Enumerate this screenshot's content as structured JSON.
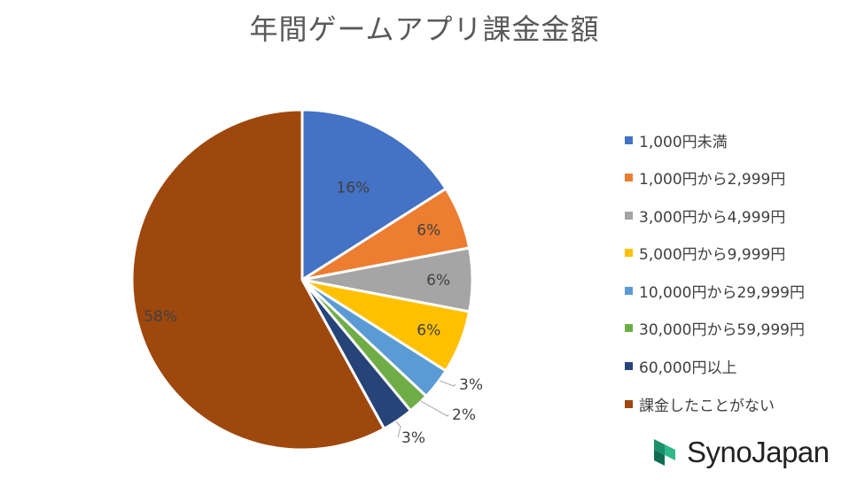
{
  "chart_data": {
    "type": "pie",
    "title": "年間ゲームアプリ課金金額",
    "start_angle_deg": 0,
    "direction": "clockwise",
    "legend_position": "right",
    "slices": [
      {
        "label": "1,000円未満",
        "value": 16,
        "display": "16%",
        "color": "#4472C4"
      },
      {
        "label": "1,000円から2,999円",
        "value": 6,
        "display": "6%",
        "color": "#ED7D31"
      },
      {
        "label": "3,000円から4,999円",
        "value": 6,
        "display": "6%",
        "color": "#A5A5A5"
      },
      {
        "label": "5,000円から9,999円",
        "value": 6,
        "display": "6%",
        "color": "#FFC000"
      },
      {
        "label": "10,000円から29,999円",
        "value": 3,
        "display": "3%",
        "color": "#5B9BD5"
      },
      {
        "label": "30,000円から59,999円",
        "value": 2,
        "display": "2%",
        "color": "#70AD47"
      },
      {
        "label": "60,000円以上",
        "value": 3,
        "display": "3%",
        "color": "#264478"
      },
      {
        "label": "課金したことがない",
        "value": 58,
        "display": "58%",
        "color": "#9E480E"
      }
    ]
  },
  "logo": {
    "text": "SynoJapan",
    "mark": "synojapan-logo-mark-icon"
  }
}
